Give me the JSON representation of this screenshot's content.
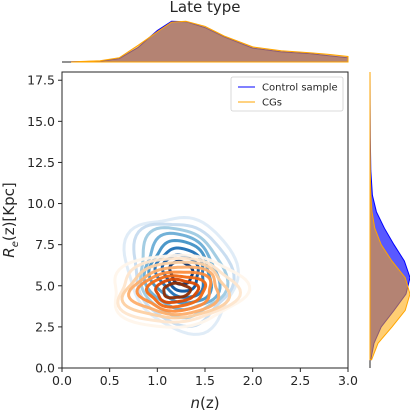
{
  "chart_data": {
    "type": "kde-jointplot",
    "title": "Late type",
    "xlabel_main": "n",
    "xlabel_paren": "(z)",
    "ylabel_main": "R",
    "ylabel_sub": "e",
    "ylabel_rest": "(z)[Kpc]",
    "xlim": [
      0.0,
      3.0
    ],
    "ylim": [
      0.0,
      18.0
    ],
    "xticks": [
      "0.0",
      "0.5",
      "1.0",
      "1.5",
      "2.0",
      "2.5",
      "3.0"
    ],
    "yticks": [
      "0.0",
      "2.5",
      "5.0",
      "7.5",
      "10.0",
      "12.5",
      "15.0",
      "17.5"
    ],
    "legend_position": "upper right",
    "series": [
      {
        "name": "Control sample",
        "line_color": "#0000ff",
        "palette": [
          "#deebf7",
          "#c6dbef",
          "#9ecae1",
          "#6baed6",
          "#4292c6",
          "#2171b5",
          "#08519c",
          "#08306b"
        ],
        "center": [
          1.25,
          5.8
        ],
        "spread": [
          0.33,
          2.0
        ],
        "tilt": -0.1,
        "marginal_x": [
          [
            0.1,
            0.005
          ],
          [
            0.4,
            0.02
          ],
          [
            0.6,
            0.08
          ],
          [
            0.8,
            0.35
          ],
          [
            1.0,
            0.75
          ],
          [
            1.15,
            0.97
          ],
          [
            1.3,
            0.96
          ],
          [
            1.5,
            0.82
          ],
          [
            1.7,
            0.6
          ],
          [
            2.0,
            0.33
          ],
          [
            2.3,
            0.24
          ],
          [
            2.6,
            0.2
          ],
          [
            2.8,
            0.15
          ],
          [
            3.0,
            0.1
          ]
        ],
        "marginal_y": [
          [
            0.5,
            0.02
          ],
          [
            1.5,
            0.1
          ],
          [
            2.5,
            0.28
          ],
          [
            3.5,
            0.6
          ],
          [
            4.5,
            0.9
          ],
          [
            5.5,
            1.0
          ],
          [
            6.5,
            0.86
          ],
          [
            7.5,
            0.6
          ],
          [
            8.5,
            0.36
          ],
          [
            9.5,
            0.16
          ],
          [
            10.5,
            0.06
          ],
          [
            12.0,
            0.02
          ],
          [
            14.0,
            0.008
          ],
          [
            16.0,
            0.003
          ],
          [
            18.0,
            0.0
          ]
        ]
      },
      {
        "name": "CGs",
        "line_color": "#ffa500",
        "palette": [
          "#fff5eb",
          "#fee6ce",
          "#fdd0a2",
          "#fdae6b",
          "#fd8d3c",
          "#f16913",
          "#d94801",
          "#8c2d04"
        ],
        "center": [
          1.2,
          4.7
        ],
        "spread": [
          0.4,
          1.25
        ],
        "tilt": 0.05,
        "marginal_x": [
          [
            0.1,
            0.005
          ],
          [
            0.4,
            0.03
          ],
          [
            0.6,
            0.1
          ],
          [
            0.8,
            0.4
          ],
          [
            1.0,
            0.72
          ],
          [
            1.15,
            0.95
          ],
          [
            1.3,
            0.97
          ],
          [
            1.5,
            0.85
          ],
          [
            1.7,
            0.62
          ],
          [
            2.0,
            0.36
          ],
          [
            2.3,
            0.27
          ],
          [
            2.6,
            0.22
          ],
          [
            2.8,
            0.18
          ],
          [
            3.0,
            0.13
          ]
        ],
        "marginal_y": [
          [
            0.5,
            0.04
          ],
          [
            1.5,
            0.2
          ],
          [
            2.5,
            0.55
          ],
          [
            3.5,
            0.88
          ],
          [
            4.5,
            1.0
          ],
          [
            5.5,
            0.88
          ],
          [
            6.5,
            0.55
          ],
          [
            7.5,
            0.28
          ],
          [
            8.5,
            0.12
          ],
          [
            9.5,
            0.05
          ],
          [
            10.5,
            0.02
          ],
          [
            12.0,
            0.008
          ],
          [
            14.0,
            0.003
          ],
          [
            18.0,
            0.0
          ]
        ]
      }
    ]
  }
}
